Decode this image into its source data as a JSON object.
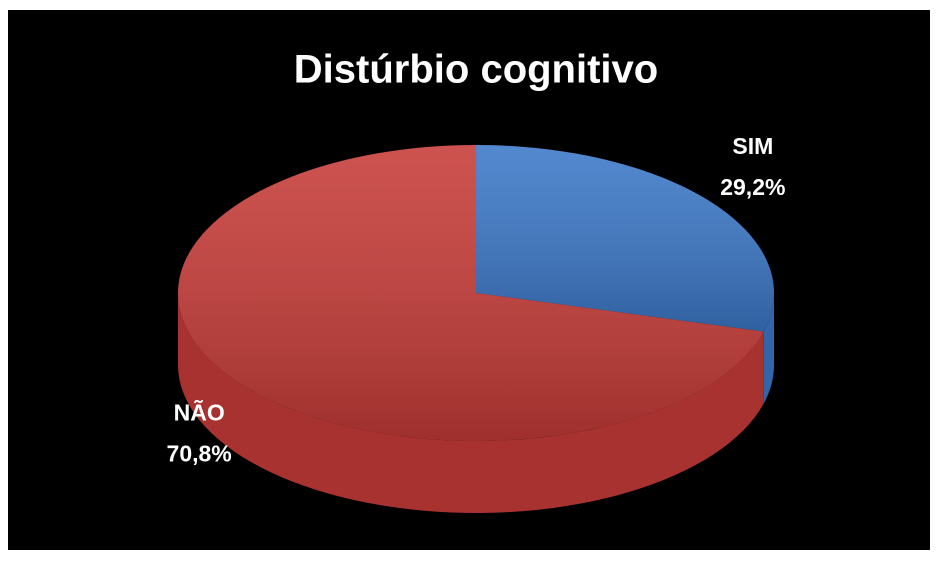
{
  "chart_data": {
    "type": "pie",
    "title": "Distúrbio cognitivo",
    "categories": [
      "SIM",
      "NÃO"
    ],
    "values": [
      29.2,
      70.8
    ],
    "value_labels": [
      "29,2%",
      "70,8%"
    ],
    "colors": [
      "#3b78c8",
      "#c63b37"
    ]
  }
}
